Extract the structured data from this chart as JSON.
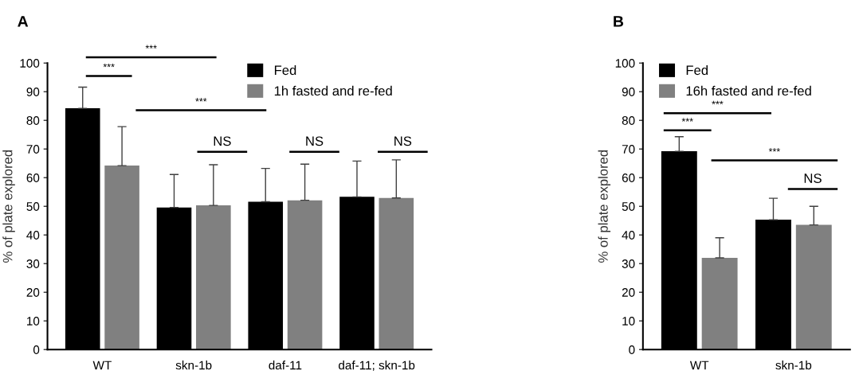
{
  "chart_data": [
    {
      "type": "bar",
      "title": "A",
      "ylabel": "% of plate explored",
      "categories": [
        "WT",
        "skn-1b",
        "daf-11",
        "daf-11; skn-1b"
      ],
      "ylim": [
        0,
        100
      ],
      "yticks": [
        0,
        10,
        20,
        30,
        40,
        50,
        60,
        70,
        80,
        90,
        100
      ],
      "legend": "top right",
      "series": [
        {
          "name": "Fed",
          "color": "#000000",
          "values": [
            84.2,
            49.6,
            51.6,
            53.3
          ],
          "errors": [
            [
              84.2,
              91.6
            ],
            [
              49.6,
              61.1
            ],
            [
              51.6,
              63.2
            ],
            [
              53.3,
              65.8
            ]
          ]
        },
        {
          "name": "1h fasted and re-fed",
          "color": "#808080",
          "values": [
            64.2,
            50.3,
            52.1,
            52.9
          ],
          "errors": [
            [
              64.2,
              77.8
            ],
            [
              50.3,
              64.5
            ],
            [
              52.1,
              64.7
            ],
            [
              52.9,
              66.2
            ]
          ]
        }
      ],
      "annotations": [
        "***",
        "NS",
        "NS",
        "NS",
        "***",
        "***"
      ]
    },
    {
      "type": "bar",
      "title": "B",
      "ylabel": "% of plate explored",
      "categories": [
        "WT",
        "skn-1b"
      ],
      "ylim": [
        0,
        100
      ],
      "yticks": [
        0,
        10,
        20,
        30,
        40,
        50,
        60,
        70,
        80,
        90,
        100
      ],
      "legend": "top left",
      "series": [
        {
          "name": "Fed",
          "color": "#000000",
          "values": [
            69.2,
            45.3
          ],
          "errors": [
            [
              69.2,
              74.3
            ],
            [
              45.3,
              52.8
            ]
          ]
        },
        {
          "name": "16h fasted and re-fed",
          "color": "#808080",
          "values": [
            32.0,
            43.5
          ],
          "errors": [
            [
              32.0,
              39.0
            ],
            [
              43.5,
              50.0
            ]
          ]
        }
      ],
      "annotations": [
        "***",
        "NS",
        "***",
        "***"
      ]
    }
  ]
}
